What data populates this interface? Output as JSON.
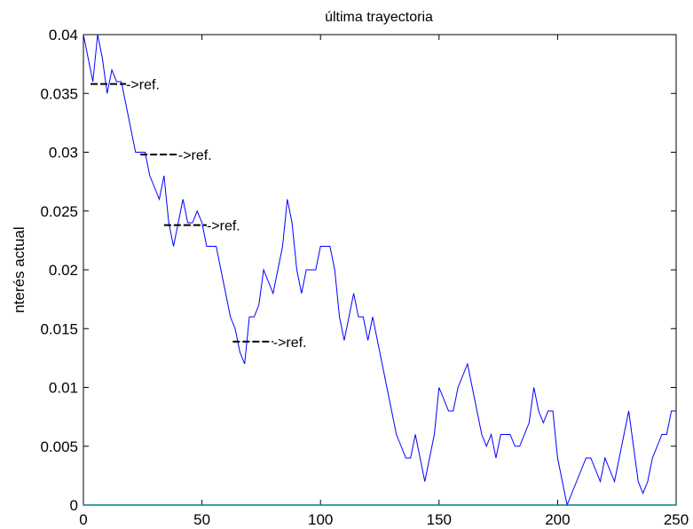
{
  "chart_data": {
    "type": "line",
    "title": "última trayectoria",
    "xlabel": "",
    "ylabel": "nterés actual",
    "xlim": [
      0,
      250
    ],
    "ylim": [
      0,
      0.04
    ],
    "xticks": [
      "0",
      "50",
      "100",
      "150",
      "200",
      "250"
    ],
    "yticks": [
      "0",
      "0.005",
      "0.01",
      "0.015",
      "0.02",
      "0.025",
      "0.03",
      "0.035",
      "0.04"
    ],
    "grid": false,
    "series": [
      {
        "color": "#0000ff",
        "x": [
          0,
          2,
          4,
          6,
          8,
          10,
          12,
          14,
          16,
          18,
          20,
          22,
          24,
          26,
          28,
          30,
          32,
          34,
          36,
          38,
          40,
          42,
          44,
          46,
          48,
          50,
          52,
          54,
          56,
          58,
          60,
          62,
          64,
          66,
          68,
          70,
          72,
          74,
          76,
          78,
          80,
          82,
          84,
          86,
          88,
          90,
          92,
          94,
          96,
          98,
          100,
          102,
          104,
          106,
          108,
          110,
          112,
          114,
          116,
          118,
          120,
          122,
          124,
          126,
          128,
          130,
          132,
          134,
          136,
          138,
          140,
          142,
          144,
          146,
          148,
          150,
          152,
          154,
          156,
          158,
          160,
          162,
          164,
          166,
          168,
          170,
          172,
          174,
          176,
          178,
          180,
          182,
          184,
          186,
          188,
          190,
          192,
          194,
          196,
          198,
          200,
          202,
          204,
          206,
          208,
          210,
          212,
          214,
          216,
          218,
          220,
          222,
          224,
          226,
          228,
          230,
          232,
          234,
          236,
          238,
          240,
          242,
          244,
          246,
          248,
          250
        ],
        "values": [
          0.04,
          0.038,
          0.036,
          0.04,
          0.038,
          0.035,
          0.037,
          0.036,
          0.036,
          0.034,
          0.032,
          0.03,
          0.03,
          0.03,
          0.028,
          0.027,
          0.026,
          0.028,
          0.024,
          0.022,
          0.024,
          0.026,
          0.024,
          0.024,
          0.025,
          0.024,
          0.022,
          0.022,
          0.022,
          0.02,
          0.018,
          0.016,
          0.015,
          0.013,
          0.012,
          0.016,
          0.016,
          0.017,
          0.02,
          0.019,
          0.018,
          0.02,
          0.022,
          0.026,
          0.024,
          0.02,
          0.018,
          0.02,
          0.02,
          0.02,
          0.022,
          0.022,
          0.022,
          0.02,
          0.016,
          0.014,
          0.016,
          0.018,
          0.016,
          0.016,
          0.014,
          0.016,
          0.014,
          0.012,
          0.01,
          0.008,
          0.006,
          0.005,
          0.004,
          0.004,
          0.006,
          0.004,
          0.002,
          0.004,
          0.006,
          0.01,
          0.009,
          0.008,
          0.008,
          0.01,
          0.011,
          0.012,
          0.01,
          0.008,
          0.006,
          0.005,
          0.006,
          0.004,
          0.006,
          0.006,
          0.006,
          0.005,
          0.005,
          0.006,
          0.007,
          0.01,
          0.008,
          0.007,
          0.008,
          0.008,
          0.004,
          0.002,
          0.0,
          0.001,
          0.002,
          0.003,
          0.004,
          0.004,
          0.003,
          0.002,
          0.004,
          0.003,
          0.002,
          0.004,
          0.006,
          0.008,
          0.005,
          0.002,
          0.001,
          0.002,
          0.004,
          0.005,
          0.006,
          0.006,
          0.008,
          0.008
        ]
      },
      {
        "color": "#008080",
        "x": [
          0,
          250
        ],
        "values": [
          0,
          0
        ]
      }
    ],
    "annotations": [
      {
        "text": "->ref.",
        "x": 3,
        "y": 0.0358,
        "x_end": 18
      },
      {
        "text": "->ref.",
        "x": 24,
        "y": 0.0298,
        "x_end": 40
      },
      {
        "text": "->ref.",
        "x": 34,
        "y": 0.0238,
        "x_end": 52
      },
      {
        "text": "->ref.",
        "x": 63,
        "y": 0.0139,
        "x_end": 80
      }
    ]
  }
}
